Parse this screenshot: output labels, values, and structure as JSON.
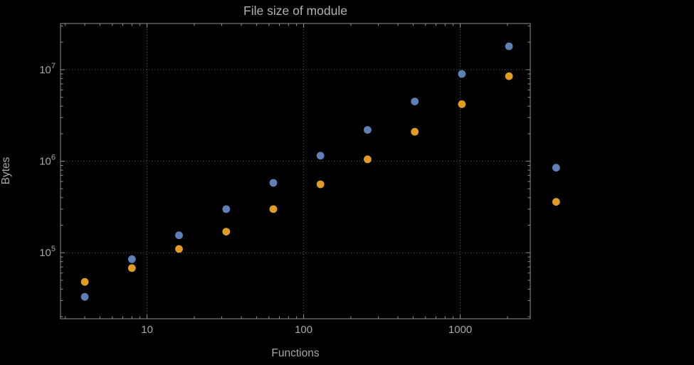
{
  "chart_data": {
    "type": "scatter",
    "title": "File size of module",
    "xlabel": "Functions",
    "ylabel": "Bytes",
    "x_scale": "log",
    "y_scale": "log",
    "x_range": [
      2.8,
      2800
    ],
    "y_range": [
      19000,
      32000000
    ],
    "grid": true,
    "grid_style": "dotted",
    "legend": "none",
    "x_ticks": [
      {
        "value": 10,
        "label": "10"
      },
      {
        "value": 100,
        "label": "100"
      },
      {
        "value": 1000,
        "label": "1000"
      }
    ],
    "y_ticks": [
      {
        "value": 100000,
        "base": "10",
        "exponent": "5"
      },
      {
        "value": 1000000,
        "base": "10",
        "exponent": "6"
      },
      {
        "value": 10000000,
        "base": "10",
        "exponent": "7"
      }
    ],
    "series": [
      {
        "name": "blue",
        "color": "#5e81b5",
        "x": [
          4,
          8,
          16,
          32,
          64,
          128,
          256,
          512,
          1024,
          2048,
          4096
        ],
        "y": [
          33000,
          85000,
          155000,
          300000,
          580000,
          1150000,
          2200000,
          4500000,
          9000000,
          18000000,
          850000
        ]
      },
      {
        "name": "orange",
        "color": "#e19c24",
        "x": [
          4,
          8,
          16,
          32,
          64,
          128,
          256,
          512,
          1024,
          2048,
          4096
        ],
        "y": [
          48000,
          68000,
          110000,
          170000,
          300000,
          560000,
          1050000,
          2100000,
          4200000,
          8500000,
          360000
        ]
      }
    ]
  },
  "colors": {
    "background": "#000000",
    "frame": "#8f8f8f",
    "grid": "#5f5f5f",
    "text": "#a6a6a6",
    "title_text": "#b2b2b2"
  }
}
